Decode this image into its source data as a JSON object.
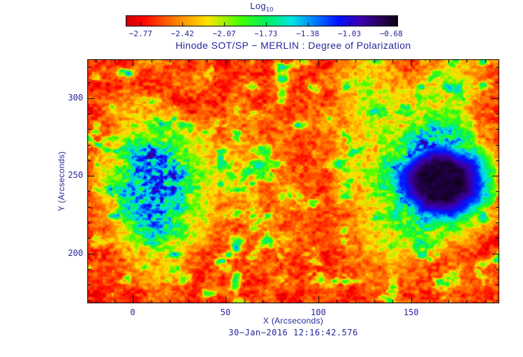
{
  "header": {
    "colorbar_title": "Log",
    "colorbar_title_sub": "10",
    "colorbar_ticks": [
      "−2.77",
      "−2.42",
      "−2.07",
      "−1.73",
      "−1.38",
      "−1.03",
      "−0.68"
    ],
    "title": "Hinode SOT/SP − MERLIN : Degree of Polarization"
  },
  "axes": {
    "x_label": "X (Arcseconds)",
    "y_label": "Y (Arcseconds)",
    "x_ticks": [
      0,
      50,
      100,
      150
    ],
    "y_ticks": [
      200,
      250,
      300
    ]
  },
  "footer": {
    "timestamp": "30−Jan−2016 12:16:42.576"
  },
  "colors": {
    "text": "#26269b",
    "frame": "#000000",
    "background": "#ffffff"
  },
  "chart_data": {
    "type": "heatmap",
    "title": "Hinode SOT/SP − MERLIN : Degree of Polarization",
    "xlabel": "X (Arcseconds)",
    "ylabel": "Y (Arcseconds)",
    "timestamp": "30-Jan-2016 12:16:42.576",
    "x_range": [
      -24.5,
      197.5
    ],
    "y_range": [
      168,
      325
    ],
    "colorbar": {
      "label": "Log10",
      "min": -2.77,
      "max": -0.68,
      "tick_values": [
        -2.77,
        -2.42,
        -2.07,
        -1.73,
        -1.38,
        -1.03,
        -0.68
      ]
    },
    "colormap_stops": [
      [
        0.0,
        "#cf0000"
      ],
      [
        0.06,
        "#ff0000"
      ],
      [
        0.18,
        "#ff7c00"
      ],
      [
        0.3,
        "#ffe400"
      ],
      [
        0.42,
        "#46ff00"
      ],
      [
        0.52,
        "#00f060"
      ],
      [
        0.61,
        "#00e4e4"
      ],
      [
        0.7,
        "#0077ff"
      ],
      [
        0.78,
        "#0014ff"
      ],
      [
        0.86,
        "#3b00b4"
      ],
      [
        0.93,
        "#2d0062"
      ],
      [
        1.0,
        "#0e0018"
      ]
    ],
    "grid_note": "Coarse estimated log10 degree-of-polarization values; rows run top (y=325) to bottom (y=168), columns left (x=-24.5) to right (x=197.5).",
    "grid_log10": [
      [
        -2.55,
        -2.45,
        -2.55,
        -2.35,
        -2.55,
        -2.5,
        -2.55,
        -2.45,
        -2.55,
        -2.5,
        -2.45,
        -2.55,
        -2.3,
        -2.1,
        -2.3,
        -2.5,
        -2.4,
        -2.2,
        -2.4,
        -2.55
      ],
      [
        -2.5,
        -2.55,
        -2.4,
        -2.55,
        -2.45,
        -2.3,
        -2.55,
        -2.5,
        -2.55,
        -2.4,
        -2.5,
        -2.45,
        -2.2,
        -2.0,
        -2.15,
        -2.35,
        -2.2,
        -2.0,
        -2.3,
        -2.45
      ],
      [
        -2.55,
        -2.4,
        -2.2,
        -2.35,
        -2.5,
        -2.55,
        -2.45,
        -2.35,
        -2.5,
        -2.45,
        -2.4,
        -2.5,
        -2.3,
        -1.95,
        -2.1,
        -2.2,
        -2.0,
        -2.1,
        -2.4,
        -2.5
      ],
      [
        -2.5,
        -2.45,
        -2.1,
        -1.9,
        -2.1,
        -2.35,
        -2.5,
        -2.45,
        -2.4,
        -2.5,
        -2.45,
        -2.3,
        -2.2,
        -2.05,
        -2.2,
        -1.9,
        -1.7,
        -1.8,
        -2.2,
        -2.5
      ],
      [
        -2.55,
        -2.3,
        -1.8,
        -1.45,
        -1.6,
        -2.0,
        -2.3,
        -2.2,
        -2.45,
        -2.35,
        -2.5,
        -2.4,
        -2.3,
        -2.1,
        -1.9,
        -1.4,
        -1.15,
        -1.3,
        -1.9,
        -2.4
      ],
      [
        -2.45,
        -2.0,
        -1.4,
        -1.15,
        -1.35,
        -1.8,
        -2.15,
        -2.35,
        -2.3,
        -2.45,
        -2.4,
        -2.45,
        -2.2,
        -2.0,
        -1.6,
        -1.05,
        -0.78,
        -0.82,
        -1.6,
        -2.3
      ],
      [
        -2.5,
        -2.1,
        -1.5,
        -1.2,
        -1.4,
        -1.9,
        -2.25,
        -2.2,
        -2.4,
        -2.3,
        -2.45,
        -2.4,
        -2.3,
        -2.1,
        -1.7,
        -1.1,
        -0.8,
        -0.9,
        -1.7,
        -2.35
      ],
      [
        -2.55,
        -2.3,
        -1.7,
        -1.35,
        -1.55,
        -2.0,
        -2.35,
        -2.45,
        -2.3,
        -2.45,
        -2.4,
        -2.5,
        -2.35,
        -2.15,
        -1.9,
        -1.5,
        -1.3,
        -1.5,
        -2.0,
        -2.45
      ],
      [
        -2.5,
        -2.4,
        -2.0,
        -1.65,
        -1.85,
        -2.2,
        -2.45,
        -2.4,
        -2.5,
        -2.4,
        -2.45,
        -2.4,
        -2.45,
        -2.2,
        -2.05,
        -1.95,
        -2.0,
        -2.15,
        -2.35,
        -2.55
      ],
      [
        -2.55,
        -2.5,
        -2.3,
        -2.05,
        -2.25,
        -2.45,
        -2.55,
        -2.5,
        -2.4,
        -2.55,
        -2.5,
        -2.55,
        -2.4,
        -2.3,
        -2.25,
        -2.3,
        -2.4,
        -2.45,
        -2.55,
        -2.5
      ],
      [
        -2.5,
        -2.55,
        -2.45,
        -2.3,
        -2.45,
        -2.55,
        -2.4,
        -2.55,
        -2.5,
        -2.4,
        -2.55,
        -2.5,
        -2.55,
        -2.45,
        -2.5,
        -2.4,
        -2.55,
        -2.4,
        -2.5,
        -2.55
      ],
      [
        -2.55,
        -2.5,
        -2.55,
        -2.45,
        -2.5,
        -2.45,
        -2.55,
        -2.5,
        -2.45,
        -2.55,
        -2.5,
        -2.45,
        -2.55,
        -2.5,
        -2.45,
        -2.5,
        -2.55,
        -2.45,
        -2.5,
        -2.55
      ]
    ],
    "features": {
      "sunspot": {
        "x": 166,
        "y": 247,
        "umbra_radius": 12,
        "penumbra_radius": 21,
        "fringe_radius": 30,
        "umbra_value": -0.74,
        "penumbra_value": -1.2,
        "fringe_value": -2.0
      },
      "plage_region": {
        "x": 15,
        "y": 243,
        "approx_extent_arcsec": 70,
        "typical_value": -1.3
      },
      "quiet_sun_value": -2.55,
      "noise": {
        "granule_scale": 0.45,
        "patch_scale": 0.12
      }
    }
  }
}
